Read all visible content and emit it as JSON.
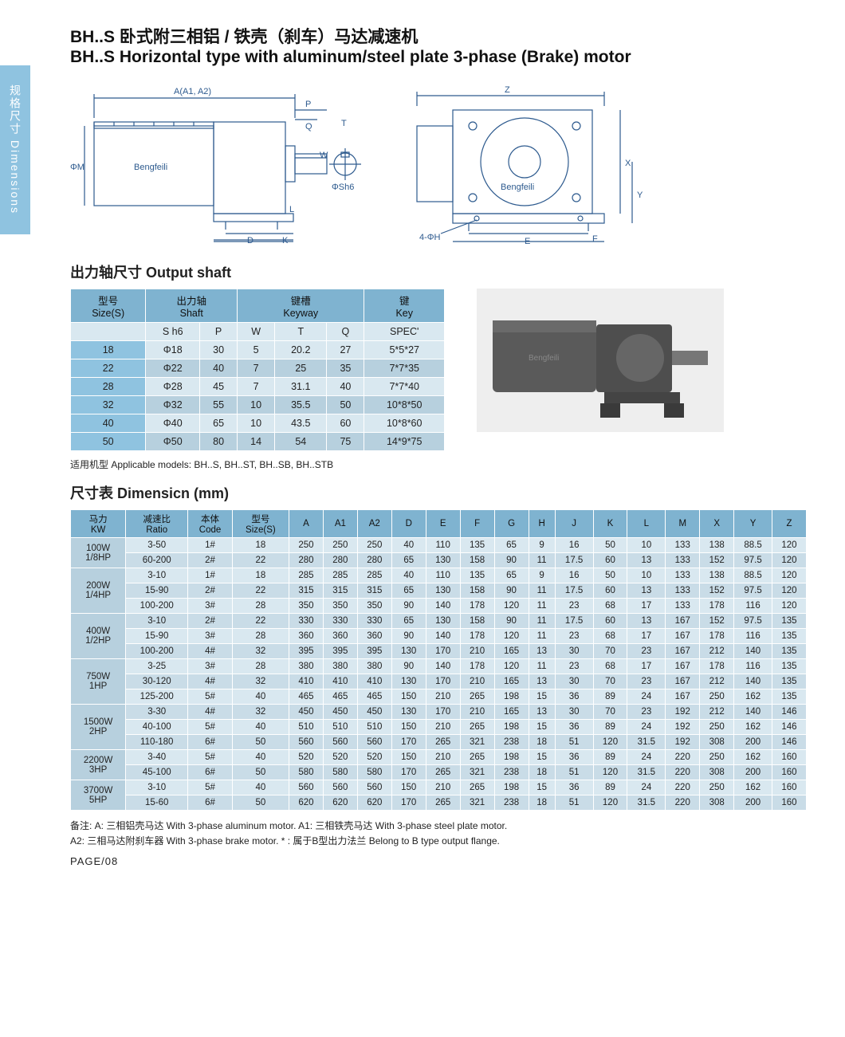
{
  "sideTab": "规格尺寸  Dimensions",
  "title_cn": "BH..S 卧式附三相铝 / 铁壳（刹车）马达减速机",
  "title_en": "BH..S Horizontal type with aluminum/steel plate 3-phase (Brake) motor",
  "diagram_labels": {
    "left": [
      "A(A1, A2)",
      "P",
      "Q",
      "T",
      "W",
      "ΦSh6",
      "ΦM",
      "L",
      "K",
      "D",
      "G",
      "Bengfeili"
    ],
    "right": [
      "Z",
      "X",
      "Y",
      "E",
      "F",
      "4-ΦH",
      "Bengfeili"
    ]
  },
  "colors": {
    "header_bg": "#7fb3d0",
    "row_light": "#d9e8f0",
    "row_med": "#c9dce7",
    "row_dark": "#b7d0de",
    "kw_bg": "#b7d0de",
    "first_col": "#8fc3e0",
    "side_tab": "#8fc3e0",
    "line": "#2d5a8e"
  },
  "shaft_heading": "出力轴尺寸 Output shaft",
  "shaft_table": {
    "head_groups": [
      {
        "cn": "型号",
        "en": "Size(S)",
        "span": 1
      },
      {
        "cn": "出力轴",
        "en": "Shaft",
        "span": 2
      },
      {
        "cn": "键槽",
        "en": "Keyway",
        "span": 3
      },
      {
        "cn": "键",
        "en": "Key",
        "span": 1
      }
    ],
    "sub_heads": [
      "",
      "S h6",
      "P",
      "W",
      "T",
      "Q",
      "SPEC'"
    ],
    "rows": [
      [
        "18",
        "Φ18",
        "30",
        "5",
        "20.2",
        "27",
        "5*5*27"
      ],
      [
        "22",
        "Φ22",
        "40",
        "7",
        "25",
        "35",
        "7*7*35"
      ],
      [
        "28",
        "Φ28",
        "45",
        "7",
        "31.1",
        "40",
        "7*7*40"
      ],
      [
        "32",
        "Φ32",
        "55",
        "10",
        "35.5",
        "50",
        "10*8*50"
      ],
      [
        "40",
        "Φ40",
        "65",
        "10",
        "43.5",
        "60",
        "10*8*60"
      ],
      [
        "50",
        "Φ50",
        "80",
        "14",
        "54",
        "75",
        "14*9*75"
      ]
    ]
  },
  "applicable_text": "适用机型 Applicable models: BH..S, BH..ST, BH..SB, BH..STB",
  "dim_heading": "尺寸表 Dimensicn (mm)",
  "dim_table": {
    "heads": [
      {
        "cn": "马力",
        "en": "KW"
      },
      {
        "cn": "减速比",
        "en": "Ratio"
      },
      {
        "cn": "本体",
        "en": "Code"
      },
      {
        "cn": "型号",
        "en": "Size(S)"
      },
      {
        "cn": "",
        "en": "A"
      },
      {
        "cn": "",
        "en": "A1"
      },
      {
        "cn": "",
        "en": "A2"
      },
      {
        "cn": "",
        "en": "D"
      },
      {
        "cn": "",
        "en": "E"
      },
      {
        "cn": "",
        "en": "F"
      },
      {
        "cn": "",
        "en": "G"
      },
      {
        "cn": "",
        "en": "H"
      },
      {
        "cn": "",
        "en": "J"
      },
      {
        "cn": "",
        "en": "K"
      },
      {
        "cn": "",
        "en": "L"
      },
      {
        "cn": "",
        "en": "M"
      },
      {
        "cn": "",
        "en": "X"
      },
      {
        "cn": "",
        "en": "Y"
      },
      {
        "cn": "",
        "en": "Z"
      }
    ],
    "groups": [
      {
        "kw": "100W\n1/8HP",
        "rows": [
          [
            "3-50",
            "1#",
            "18",
            "250",
            "250",
            "250",
            "40",
            "110",
            "135",
            "65",
            "9",
            "16",
            "50",
            "10",
            "133",
            "138",
            "88.5",
            "120"
          ],
          [
            "60-200",
            "2#",
            "22",
            "280",
            "280",
            "280",
            "65",
            "130",
            "158",
            "90",
            "11",
            "17.5",
            "60",
            "13",
            "133",
            "152",
            "97.5",
            "120"
          ]
        ]
      },
      {
        "kw": "200W\n1/4HP",
        "rows": [
          [
            "3-10",
            "1#",
            "18",
            "285",
            "285",
            "285",
            "40",
            "110",
            "135",
            "65",
            "9",
            "16",
            "50",
            "10",
            "133",
            "138",
            "88.5",
            "120"
          ],
          [
            "15-90",
            "2#",
            "22",
            "315",
            "315",
            "315",
            "65",
            "130",
            "158",
            "90",
            "11",
            "17.5",
            "60",
            "13",
            "133",
            "152",
            "97.5",
            "120"
          ],
          [
            "100-200",
            "3#",
            "28",
            "350",
            "350",
            "350",
            "90",
            "140",
            "178",
            "120",
            "11",
            "23",
            "68",
            "17",
            "133",
            "178",
            "116",
            "120"
          ]
        ]
      },
      {
        "kw": "400W\n1/2HP",
        "rows": [
          [
            "3-10",
            "2#",
            "22",
            "330",
            "330",
            "330",
            "65",
            "130",
            "158",
            "90",
            "11",
            "17.5",
            "60",
            "13",
            "167",
            "152",
            "97.5",
            "135"
          ],
          [
            "15-90",
            "3#",
            "28",
            "360",
            "360",
            "360",
            "90",
            "140",
            "178",
            "120",
            "11",
            "23",
            "68",
            "17",
            "167",
            "178",
            "116",
            "135"
          ],
          [
            "100-200",
            "4#",
            "32",
            "395",
            "395",
            "395",
            "130",
            "170",
            "210",
            "165",
            "13",
            "30",
            "70",
            "23",
            "167",
            "212",
            "140",
            "135"
          ]
        ]
      },
      {
        "kw": "750W\n1HP",
        "rows": [
          [
            "3-25",
            "3#",
            "28",
            "380",
            "380",
            "380",
            "90",
            "140",
            "178",
            "120",
            "11",
            "23",
            "68",
            "17",
            "167",
            "178",
            "116",
            "135"
          ],
          [
            "30-120",
            "4#",
            "32",
            "410",
            "410",
            "410",
            "130",
            "170",
            "210",
            "165",
            "13",
            "30",
            "70",
            "23",
            "167",
            "212",
            "140",
            "135"
          ],
          [
            "125-200",
            "5#",
            "40",
            "465",
            "465",
            "465",
            "150",
            "210",
            "265",
            "198",
            "15",
            "36",
            "89",
            "24",
            "167",
            "250",
            "162",
            "135"
          ]
        ]
      },
      {
        "kw": "1500W\n2HP",
        "rows": [
          [
            "3-30",
            "4#",
            "32",
            "450",
            "450",
            "450",
            "130",
            "170",
            "210",
            "165",
            "13",
            "30",
            "70",
            "23",
            "192",
            "212",
            "140",
            "146"
          ],
          [
            "40-100",
            "5#",
            "40",
            "510",
            "510",
            "510",
            "150",
            "210",
            "265",
            "198",
            "15",
            "36",
            "89",
            "24",
            "192",
            "250",
            "162",
            "146"
          ],
          [
            "110-180",
            "6#",
            "50",
            "560",
            "560",
            "560",
            "170",
            "265",
            "321",
            "238",
            "18",
            "51",
            "120",
            "31.5",
            "192",
            "308",
            "200",
            "146"
          ]
        ]
      },
      {
        "kw": "2200W\n3HP",
        "rows": [
          [
            "3-40",
            "5#",
            "40",
            "520",
            "520",
            "520",
            "150",
            "210",
            "265",
            "198",
            "15",
            "36",
            "89",
            "24",
            "220",
            "250",
            "162",
            "160"
          ],
          [
            "45-100",
            "6#",
            "50",
            "580",
            "580",
            "580",
            "170",
            "265",
            "321",
            "238",
            "18",
            "51",
            "120",
            "31.5",
            "220",
            "308",
            "200",
            "160"
          ]
        ]
      },
      {
        "kw": "3700W\n5HP",
        "rows": [
          [
            "3-10",
            "5#",
            "40",
            "560",
            "560",
            "560",
            "150",
            "210",
            "265",
            "198",
            "15",
            "36",
            "89",
            "24",
            "220",
            "250",
            "162",
            "160"
          ],
          [
            "15-60",
            "6#",
            "50",
            "620",
            "620",
            "620",
            "170",
            "265",
            "321",
            "238",
            "18",
            "51",
            "120",
            "31.5",
            "220",
            "308",
            "200",
            "160"
          ]
        ]
      }
    ]
  },
  "notes": [
    "备注: A: 三相铝壳马达 With 3-phase aluminum motor.    A1: 三相铁壳马达 With 3-phase steel plate motor.",
    "A2: 三相马达附刹车器 With 3-phase brake motor.    * : 属于B型出力法兰 Belong to B type output flange."
  ],
  "page_num": "PAGE/08"
}
